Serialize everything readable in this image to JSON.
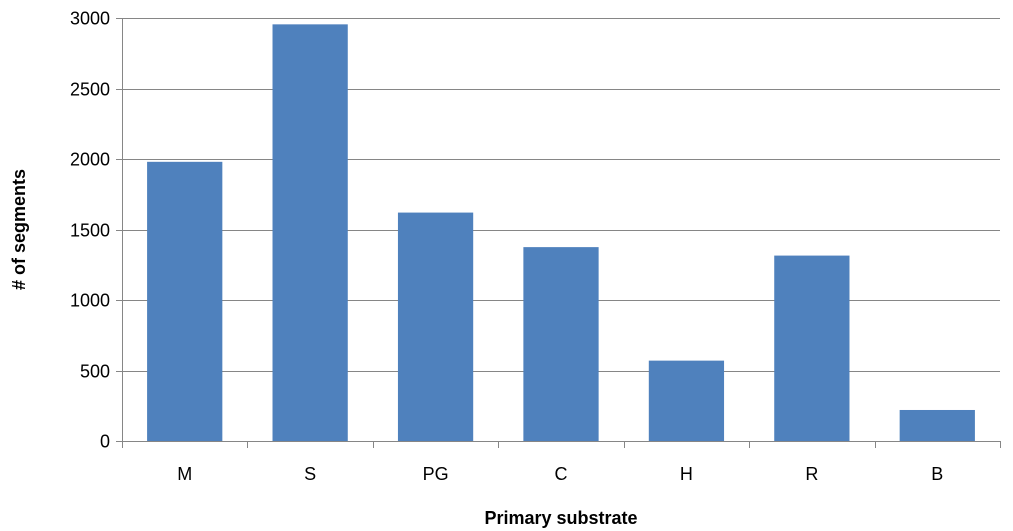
{
  "chart_data": {
    "type": "bar",
    "categories": [
      "M",
      "S",
      "PG",
      "C",
      "H",
      "R",
      "B"
    ],
    "values": [
      1980,
      2955,
      1620,
      1375,
      570,
      1315,
      220
    ],
    "xlabel": "Primary substrate",
    "ylabel": "# of segments",
    "ylim": [
      0,
      3000
    ],
    "yticks": [
      0,
      500,
      1000,
      1500,
      2000,
      2500,
      3000
    ],
    "grid": true,
    "legend": "none"
  },
  "colors": {
    "bar": "#4F81BD",
    "grid": "#868686",
    "axis": "#868686"
  }
}
